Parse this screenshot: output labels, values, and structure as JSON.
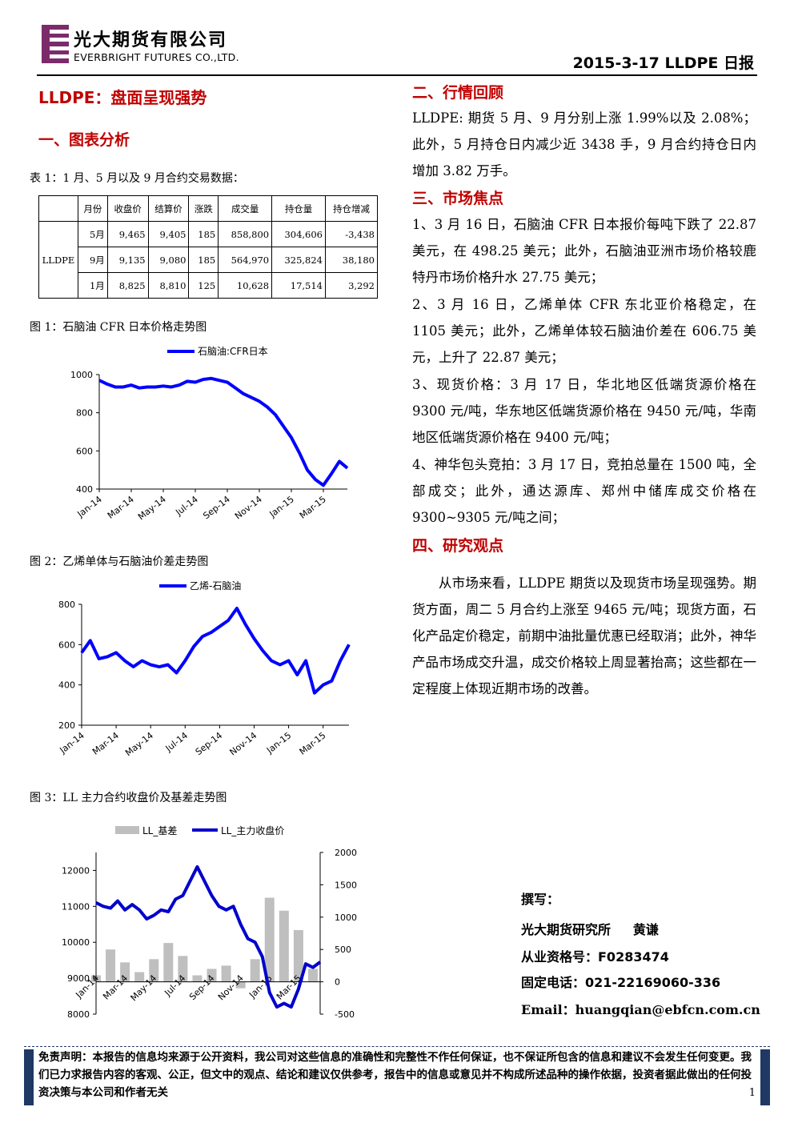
{
  "header": {
    "company_cn": "光大期货有限公司",
    "company_en": "EVERBRIGHT FUTURES CO.,LTD.",
    "date_title": "2015-3-17   LLDPE 日报"
  },
  "left": {
    "main_title": "LLDPE：盘面呈现强势",
    "sec1_title": "一、图表分析",
    "table_caption": "表 1：1 月、5 月以及 9 月合约交易数据：",
    "table": {
      "headers": [
        "月份",
        "收盘价",
        "结算价",
        "涨跌",
        "成交量",
        "持仓量",
        "持仓增减"
      ],
      "product": "LLDPE",
      "rows": [
        [
          "5月",
          "9,465",
          "9,405",
          "185",
          "858,800",
          "304,606",
          "-3,438"
        ],
        [
          "9月",
          "9,135",
          "9,080",
          "185",
          "564,970",
          "325,824",
          "38,180"
        ],
        [
          "1月",
          "8,825",
          "8,810",
          "125",
          "10,628",
          "17,514",
          "3,292"
        ]
      ]
    },
    "fig1_caption": "图 1：石脑油 CFR 日本价格走势图",
    "fig2_caption": "图 2：乙烯单体与石脑油价差走势图",
    "fig3_caption": "图 3：LL 主力合约收盘价及基差走势图"
  },
  "right": {
    "sec2_title": "二、行情回顾",
    "sec2_text": "LLDPE: 期货 5 月、9 月分别上涨 1.99%以及 2.08%；此外，5 月持仓日内减少近 3438 手，9 月合约持仓日内增加 3.82 万手。",
    "sec3_title": "三、市场焦点",
    "sec3_items": [
      "1、3 月 16 日，石脑油 CFR 日本报价每吨下跌了 22.87 美元，在 498.25 美元；此外，石脑油亚洲市场价格较鹿特丹市场价格升水 27.75 美元；",
      "2、3 月 16 日，乙烯单体 CFR 东北亚价格稳定，在 1105 美元；此外，乙烯单体较石脑油价差在 606.75 美元，上升了 22.87 美元；",
      "3、现货价格：3 月 17 日，华北地区低端货源价格在 9300 元/吨，华东地区低端货源价格在 9450 元/吨，华南地区低端货源价格在 9400 元/吨；",
      "4、神华包头竞拍：3 月 17 日，竞拍总量在 1500 吨，全部成交；此外，通达源库、郑州中储库成交价格在 9300~9305 元/吨之间；"
    ],
    "sec4_title": "四、研究观点",
    "sec4_text": "从市场来看，LLDPE 期货以及现货市场呈现强势。期货方面，周二 5 月合约上涨至 9465 元/吨；现货方面，石化产品定价稳定，前期中油批量优惠已经取消；此外，神华产品市场成交升温，成交价格较上周显著抬高；这些都在一定程度上体现近期市场的改善。",
    "author": {
      "label": "撰写：",
      "org": "光大期货研究所     黄谦",
      "cert": "从业资格号：F0283474",
      "phone": "固定电话：021-22169060-336",
      "email": "Email：huangqian@ebfcn.com.cn"
    }
  },
  "footer": {
    "disclaimer": "免责声明：本报告的信息均来源于公开资料，我公司对这些信息的准确性和完整性不作任何保证，也不保证所包含的信息和建议不会发生任何变更。我们已力求报告内容的客观、公正，但文中的观点、结论和建议仅供参考，报告中的信息或意见并不构成所述品种的操作依据，投资者据此做出的任何投资决策与本公司和作者无关",
    "page_number": "1"
  },
  "chart_data": [
    {
      "type": "line",
      "legend": [
        "石脑油:CFR日本"
      ],
      "x_ticks": [
        "Jan-14",
        "Mar-14",
        "May-14",
        "Jul-14",
        "Sep-14",
        "Nov-14",
        "Jan-15",
        "Mar-15"
      ],
      "y_ticks": [
        400,
        600,
        800,
        1000
      ],
      "ylim": [
        400,
        1000
      ],
      "color": "#0000ff",
      "series": [
        {
          "name": "石脑油:CFR日本",
          "x": [
            0,
            0.5,
            1,
            1.5,
            2,
            2.5,
            3,
            3.5,
            4,
            4.5,
            5,
            5.5,
            6,
            6.5,
            7,
            7.5,
            8,
            8.5,
            9,
            9.5,
            10,
            10.5,
            11,
            11.5,
            12,
            12.5,
            13,
            13.5,
            14,
            14.5,
            15,
            15.5
          ],
          "values": [
            970,
            950,
            935,
            935,
            945,
            930,
            935,
            935,
            940,
            935,
            945,
            965,
            960,
            975,
            980,
            970,
            960,
            930,
            900,
            880,
            860,
            830,
            790,
            730,
            670,
            590,
            500,
            450,
            420,
            480,
            545,
            510
          ]
        }
      ]
    },
    {
      "type": "line",
      "legend": [
        "乙烯-石脑油"
      ],
      "x_ticks": [
        "Jan-14",
        "Mar-14",
        "May-14",
        "Jul-14",
        "Sep-14",
        "Nov-14",
        "Jan-15",
        "Mar-15"
      ],
      "y_ticks": [
        200,
        400,
        600,
        800
      ],
      "ylim": [
        200,
        800
      ],
      "color": "#0000ff",
      "series": [
        {
          "name": "乙烯-石脑油",
          "x": [
            0,
            0.5,
            1,
            1.5,
            2,
            2.5,
            3,
            3.5,
            4,
            4.5,
            5,
            5.5,
            6,
            6.5,
            7,
            7.5,
            8,
            8.5,
            9,
            9.5,
            10,
            10.5,
            11,
            11.5,
            12,
            12.5,
            13,
            13.5,
            14,
            14.5,
            15,
            15.5
          ],
          "values": [
            560,
            620,
            530,
            540,
            560,
            520,
            490,
            520,
            500,
            490,
            500,
            460,
            520,
            590,
            640,
            660,
            690,
            720,
            780,
            700,
            630,
            570,
            520,
            500,
            520,
            450,
            520,
            360,
            400,
            420,
            520,
            600
          ]
        }
      ]
    },
    {
      "type": "bar+line",
      "legend": [
        "LL_基差",
        "LL_主力收盘价"
      ],
      "x_ticks": [
        "Jan-14",
        "Mar-14",
        "May-14",
        "Jul-14",
        "Sep-14",
        "Nov-14",
        "Jan-15",
        "Mar-15"
      ],
      "y_left_ticks": [
        8000,
        9000,
        10000,
        11000,
        12000
      ],
      "ylim_left": [
        8000,
        12500
      ],
      "y_right_ticks": [
        -500,
        0,
        500,
        1000,
        1500,
        2000
      ],
      "ylim_right": [
        -500,
        2000
      ],
      "bar_color": "#bfbfbf",
      "line_color": "#0000cc",
      "series": [
        {
          "name": "LL_主力收盘价",
          "x": [
            0,
            0.5,
            1,
            1.5,
            2,
            2.5,
            3,
            3.5,
            4,
            4.5,
            5,
            5.5,
            6,
            6.5,
            7,
            7.5,
            8,
            8.5,
            9,
            9.5,
            10,
            10.5,
            11,
            11.5,
            12,
            12.5,
            13,
            13.5,
            14,
            14.5,
            15,
            15.5
          ],
          "values": [
            11100,
            11000,
            10950,
            11150,
            10900,
            11050,
            10900,
            10650,
            10750,
            10900,
            10850,
            11200,
            11300,
            11700,
            12100,
            11700,
            11300,
            11000,
            10900,
            11000,
            10500,
            10100,
            10000,
            9600,
            8600,
            8200,
            8300,
            8200,
            8700,
            9400,
            9300,
            9450
          ]
        },
        {
          "name": "LL_基差",
          "x": [
            0,
            1,
            2,
            3,
            4,
            5,
            6,
            7,
            8,
            9,
            10,
            11,
            12,
            13,
            14,
            15
          ],
          "values": [
            100,
            500,
            300,
            150,
            350,
            600,
            400,
            100,
            200,
            250,
            -100,
            350,
            1300,
            1100,
            800,
            200
          ]
        }
      ]
    }
  ]
}
